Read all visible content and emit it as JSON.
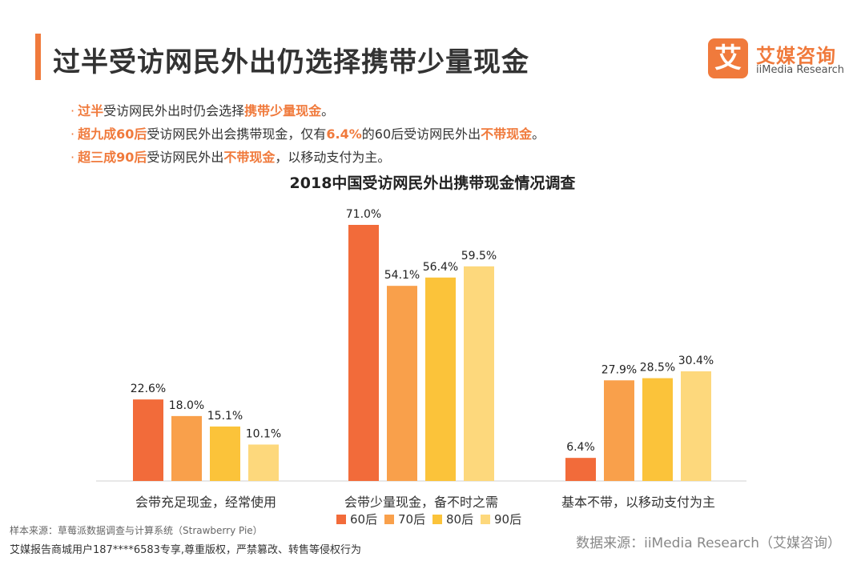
{
  "page_title": "过半受访网民外出仍选择携带少量现金",
  "logo": {
    "mark": "艾",
    "name_cn": "艾媒咨询",
    "name_en": "iiMedia Research"
  },
  "bullets": [
    {
      "parts": [
        {
          "text": "过半",
          "hl": true
        },
        {
          "text": "受访网民外出时仍会选择",
          "hl": false
        },
        {
          "text": "携带少量现金",
          "hl": true
        },
        {
          "text": "。",
          "hl": false
        }
      ]
    },
    {
      "parts": [
        {
          "text": "超九成60后",
          "hl": true
        },
        {
          "text": "受访网民外出会携带现金，仅有",
          "hl": false
        },
        {
          "text": "6.4%",
          "hl": true
        },
        {
          "text": "的60后受访网民外出",
          "hl": false
        },
        {
          "text": "不带现金",
          "hl": true
        },
        {
          "text": "。",
          "hl": false
        }
      ]
    },
    {
      "parts": [
        {
          "text": "超三成90后",
          "hl": true
        },
        {
          "text": "受访网民外出",
          "hl": false
        },
        {
          "text": "不带现金",
          "hl": true
        },
        {
          "text": "，以移动支付为主。",
          "hl": false
        }
      ]
    }
  ],
  "chart_data": {
    "type": "bar",
    "title": "2018中国受访网民外出携带现金情况调查",
    "categories": [
      "会带充足现金，经常使用",
      "会带少量现金，备不时之需",
      "基本不带，以移动支付为主"
    ],
    "series": [
      {
        "name": "60后",
        "values": [
          22.6,
          71.0,
          6.4
        ]
      },
      {
        "name": "70后",
        "values": [
          18.0,
          54.1,
          27.9
        ]
      },
      {
        "name": "80后",
        "values": [
          15.1,
          56.4,
          28.5
        ]
      },
      {
        "name": "90后",
        "values": [
          10.1,
          59.5,
          30.4
        ]
      }
    ],
    "value_suffix": "%",
    "ylim": [
      0,
      71
    ],
    "grid": false,
    "legend_position": "bottom-center",
    "colors": [
      "#f26b3a",
      "#f9a04b",
      "#fbc33a",
      "#fdd87c"
    ]
  },
  "footer": {
    "sample_note": "样本来源：草莓派数据调查与计算系统（Strawberry Pie）",
    "copyright": "艾媒报告商城用户187****6583专享,尊重版权，严禁篡改、转售等侵权行为",
    "source": "数据来源：iiMedia Research（艾媒咨询）"
  }
}
